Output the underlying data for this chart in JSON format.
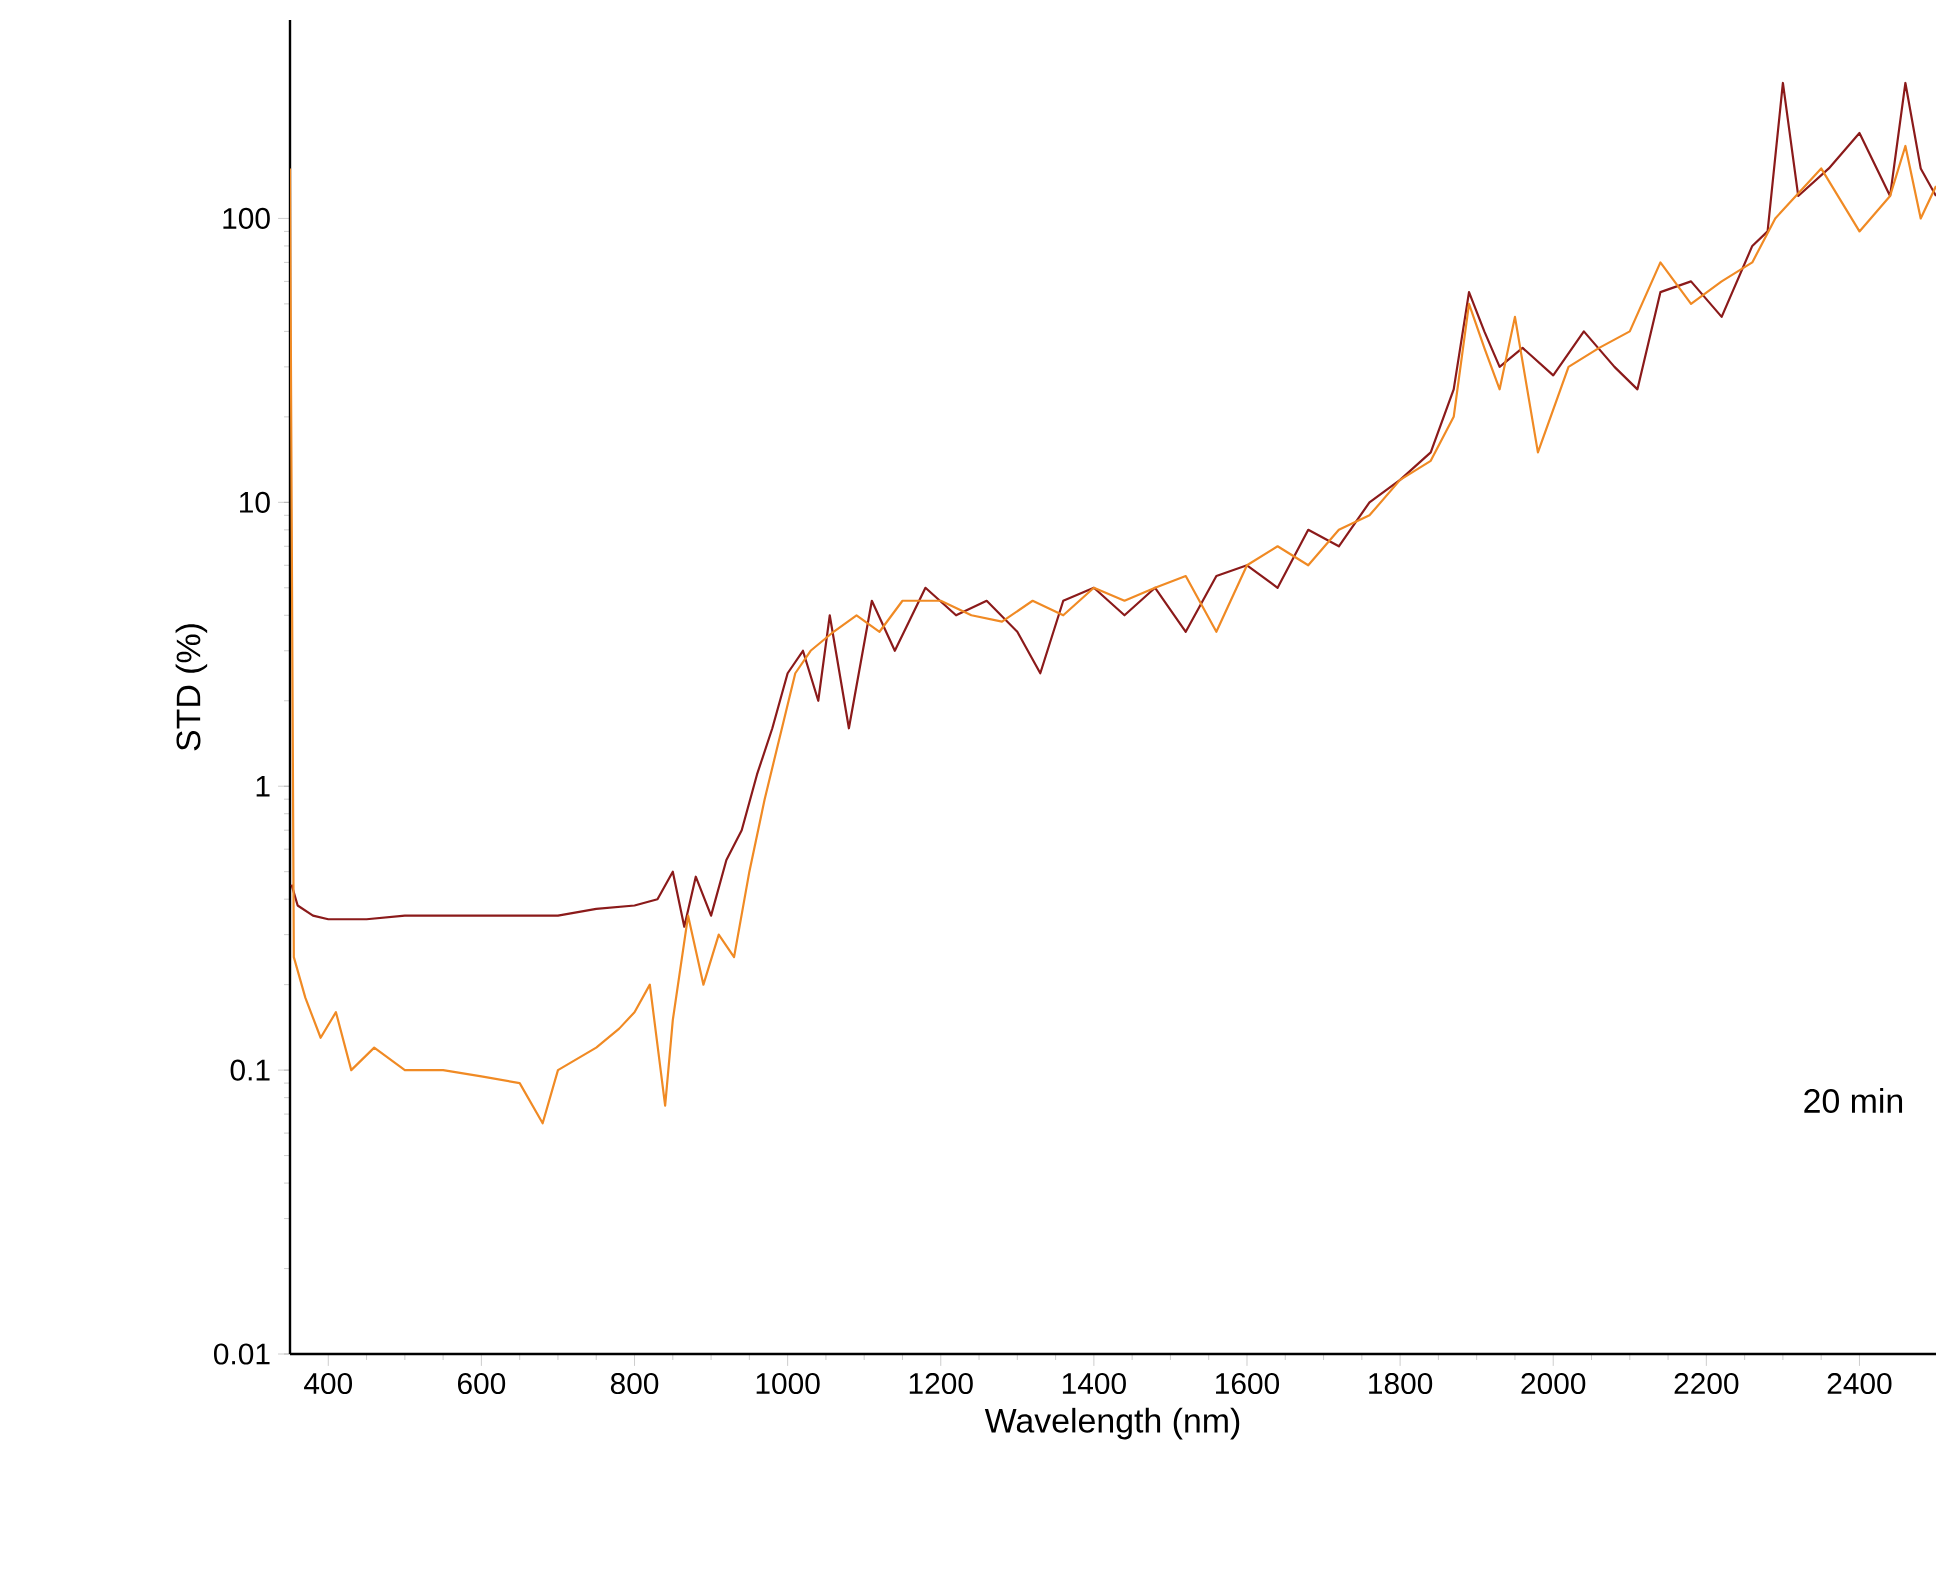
{
  "chart_data": {
    "type": "line",
    "xlabel": "Wavelength (nm)",
    "ylabel": "STD (%)",
    "log": "y",
    "grid": false,
    "xlim": [
      350,
      2500
    ],
    "ylim": [
      0.01,
      500
    ],
    "xticks": [
      400,
      600,
      800,
      1000,
      1200,
      1400,
      1600,
      1800,
      2000,
      2200,
      2400
    ],
    "yticks": [
      0.01,
      0.1,
      1,
      10,
      100
    ],
    "annotations": [
      "20 min"
    ],
    "series": [
      {
        "color": "#8b1a1a",
        "x": [
          352,
          360,
          380,
          400,
          450,
          500,
          550,
          600,
          650,
          700,
          750,
          800,
          830,
          850,
          865,
          880,
          900,
          920,
          940,
          960,
          980,
          1000,
          1020,
          1040,
          1055,
          1080,
          1110,
          1140,
          1180,
          1220,
          1260,
          1300,
          1330,
          1360,
          1400,
          1440,
          1480,
          1520,
          1560,
          1600,
          1640,
          1680,
          1720,
          1760,
          1800,
          1840,
          1870,
          1890,
          1910,
          1930,
          1960,
          2000,
          2040,
          2080,
          2110,
          2140,
          2180,
          2220,
          2260,
          2280,
          2300,
          2320,
          2340,
          2360,
          2380,
          2400,
          2420,
          2440,
          2460,
          2480,
          2500
        ],
        "values": [
          0.45,
          0.38,
          0.35,
          0.34,
          0.34,
          0.35,
          0.35,
          0.35,
          0.35,
          0.35,
          0.37,
          0.38,
          0.4,
          0.5,
          0.32,
          0.48,
          0.35,
          0.55,
          0.7,
          1.1,
          1.6,
          2.5,
          3,
          2,
          4,
          1.6,
          4.5,
          3,
          5,
          4,
          4.5,
          3.5,
          2.5,
          4.5,
          5,
          4,
          5,
          3.5,
          5.5,
          6,
          5,
          8,
          7,
          10,
          12,
          15,
          25,
          55,
          40,
          30,
          35,
          28,
          40,
          30,
          25,
          55,
          60,
          45,
          80,
          90,
          300,
          120,
          null,
          150,
          null,
          200,
          null,
          120,
          300,
          150,
          120
        ]
      },
      {
        "color": "#f08a24",
        "x": [
          350,
          355,
          370,
          390,
          410,
          430,
          460,
          500,
          550,
          600,
          650,
          680,
          700,
          750,
          780,
          800,
          820,
          840,
          850,
          870,
          890,
          910,
          930,
          950,
          970,
          990,
          1010,
          1030,
          1060,
          1090,
          1120,
          1150,
          1200,
          1240,
          1280,
          1320,
          1360,
          1400,
          1440,
          1480,
          1520,
          1560,
          1600,
          1640,
          1680,
          1720,
          1760,
          1800,
          1840,
          1870,
          1890,
          1910,
          1930,
          1950,
          1980,
          2020,
          2060,
          2100,
          2140,
          2180,
          2220,
          2260,
          2290,
          2320,
          2350,
          2370,
          2400,
          2420,
          2440,
          2460,
          2480,
          2500
        ],
        "values": [
          150,
          0.25,
          0.18,
          0.13,
          0.16,
          0.1,
          0.12,
          0.1,
          0.1,
          0.095,
          0.09,
          0.065,
          0.1,
          0.12,
          0.14,
          0.16,
          0.2,
          0.075,
          0.15,
          0.35,
          0.2,
          0.3,
          0.25,
          0.5,
          0.9,
          1.5,
          2.5,
          3,
          3.5,
          4,
          3.5,
          4.5,
          4.5,
          4,
          3.8,
          4.5,
          4,
          5,
          4.5,
          5,
          5.5,
          3.5,
          6,
          7,
          6,
          8,
          9,
          12,
          14,
          20,
          50,
          35,
          25,
          45,
          15,
          30,
          35,
          40,
          70,
          50,
          60,
          70,
          100,
          null,
          150,
          null,
          90,
          null,
          120,
          180,
          100,
          130
        ]
      }
    ]
  }
}
